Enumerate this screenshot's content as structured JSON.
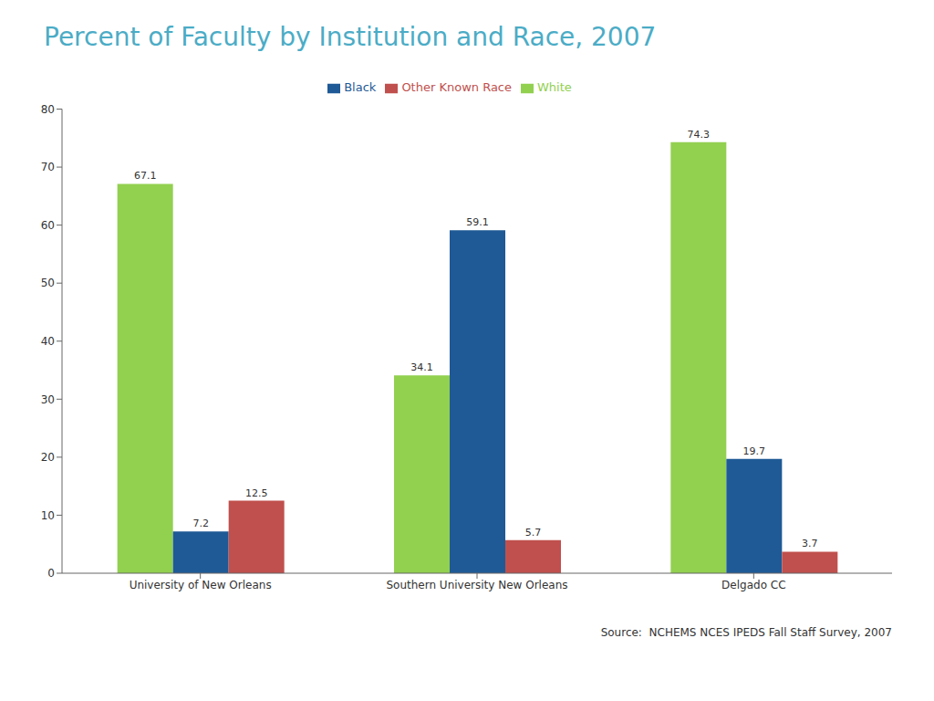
{
  "chart_data": {
    "type": "bar",
    "title": "Percent of Faculty by Institution and Race, 2007",
    "categories": [
      "University of New Orleans",
      "Southern University New Orleans",
      "Delgado CC"
    ],
    "series": [
      {
        "name": "White",
        "color": "#92d050",
        "values": [
          67.1,
          34.1,
          74.3
        ]
      },
      {
        "name": "Black",
        "color": "#1f5a96",
        "values": [
          7.2,
          59.1,
          19.7
        ]
      },
      {
        "name": "Other Known Race",
        "color": "#c0504d",
        "values": [
          12.5,
          5.7,
          3.7
        ]
      }
    ],
    "ylim": [
      0,
      80
    ],
    "yticks": [
      0,
      10,
      20,
      30,
      40,
      50,
      60,
      70,
      80
    ],
    "grid": false,
    "legend": "top",
    "data_labels": true,
    "annotations": [
      "Source:  NCHEMS NCES IPEDS Fall Staff Survey, 2007"
    ]
  }
}
